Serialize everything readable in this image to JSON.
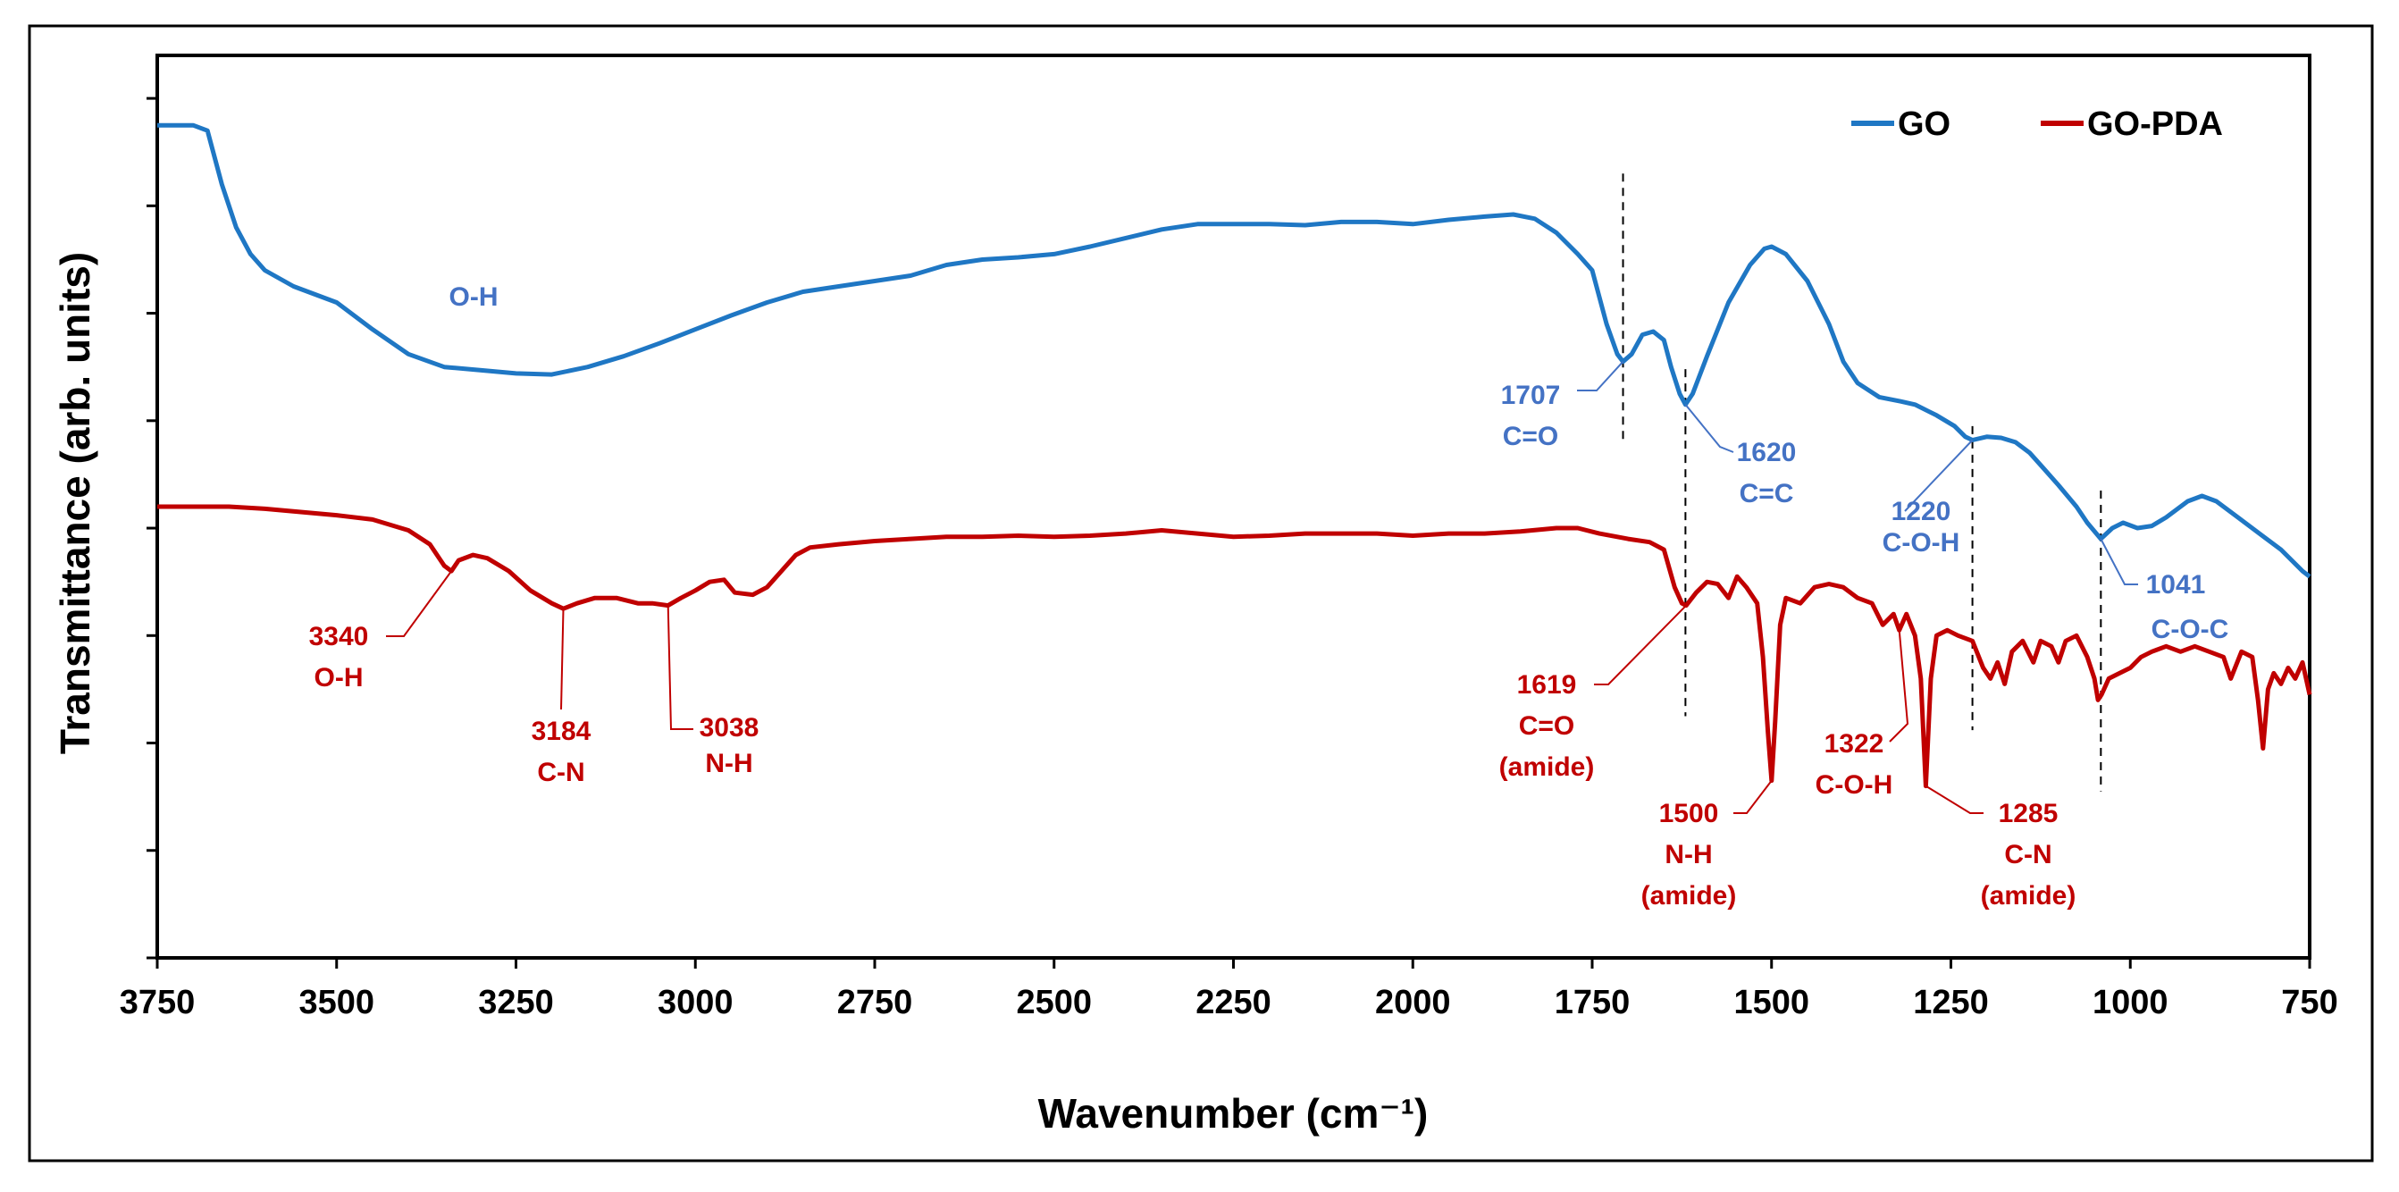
{
  "chart_data": {
    "type": "line",
    "title": "",
    "xlabel": "Wavenumber (cm⁻¹)",
    "ylabel": "Transmittance (arb. units)",
    "xlim": [
      3750,
      750
    ],
    "x_reversed": true,
    "ylim": [
      0,
      8.4
    ],
    "x_ticks": [
      3750,
      3500,
      3250,
      3000,
      2750,
      2500,
      2250,
      2000,
      1750,
      1500,
      1250,
      1000,
      750
    ],
    "y_ticks": [
      0,
      1,
      2,
      3,
      4,
      5,
      6,
      7,
      8
    ],
    "y_tick_labels_shown": false,
    "grid": false,
    "legend_position": "top-right",
    "colors": {
      "GO": "#1f77c4",
      "GO-PDA": "#c00000",
      "GO_label": "#4472c4",
      "GO-PDA_label": "#c00000"
    },
    "series": [
      {
        "name": "GO",
        "points": [
          [
            3750,
            7.75
          ],
          [
            3700,
            7.75
          ],
          [
            3680,
            7.7
          ],
          [
            3660,
            7.2
          ],
          [
            3640,
            6.8
          ],
          [
            3620,
            6.55
          ],
          [
            3600,
            6.4
          ],
          [
            3560,
            6.25
          ],
          [
            3500,
            6.1
          ],
          [
            3450,
            5.85
          ],
          [
            3400,
            5.62
          ],
          [
            3350,
            5.5
          ],
          [
            3300,
            5.47
          ],
          [
            3250,
            5.44
          ],
          [
            3200,
            5.43
          ],
          [
            3150,
            5.5
          ],
          [
            3100,
            5.6
          ],
          [
            3050,
            5.72
          ],
          [
            3000,
            5.85
          ],
          [
            2950,
            5.98
          ],
          [
            2900,
            6.1
          ],
          [
            2850,
            6.2
          ],
          [
            2800,
            6.25
          ],
          [
            2750,
            6.3
          ],
          [
            2700,
            6.35
          ],
          [
            2650,
            6.45
          ],
          [
            2600,
            6.5
          ],
          [
            2550,
            6.52
          ],
          [
            2500,
            6.55
          ],
          [
            2450,
            6.62
          ],
          [
            2400,
            6.7
          ],
          [
            2350,
            6.78
          ],
          [
            2300,
            6.83
          ],
          [
            2250,
            6.83
          ],
          [
            2200,
            6.83
          ],
          [
            2150,
            6.82
          ],
          [
            2100,
            6.85
          ],
          [
            2050,
            6.85
          ],
          [
            2000,
            6.83
          ],
          [
            1950,
            6.87
          ],
          [
            1900,
            6.9
          ],
          [
            1860,
            6.92
          ],
          [
            1830,
            6.88
          ],
          [
            1800,
            6.75
          ],
          [
            1770,
            6.55
          ],
          [
            1750,
            6.4
          ],
          [
            1730,
            5.9
          ],
          [
            1715,
            5.62
          ],
          [
            1707,
            5.55
          ],
          [
            1695,
            5.62
          ],
          [
            1680,
            5.8
          ],
          [
            1665,
            5.83
          ],
          [
            1650,
            5.75
          ],
          [
            1640,
            5.5
          ],
          [
            1628,
            5.25
          ],
          [
            1620,
            5.15
          ],
          [
            1610,
            5.25
          ],
          [
            1590,
            5.6
          ],
          [
            1560,
            6.1
          ],
          [
            1530,
            6.45
          ],
          [
            1510,
            6.6
          ],
          [
            1500,
            6.62
          ],
          [
            1480,
            6.55
          ],
          [
            1450,
            6.3
          ],
          [
            1420,
            5.9
          ],
          [
            1400,
            5.55
          ],
          [
            1380,
            5.35
          ],
          [
            1350,
            5.22
          ],
          [
            1320,
            5.18
          ],
          [
            1300,
            5.15
          ],
          [
            1270,
            5.05
          ],
          [
            1245,
            4.95
          ],
          [
            1230,
            4.85
          ],
          [
            1220,
            4.82
          ],
          [
            1200,
            4.85
          ],
          [
            1180,
            4.84
          ],
          [
            1160,
            4.8
          ],
          [
            1140,
            4.7
          ],
          [
            1120,
            4.55
          ],
          [
            1100,
            4.4
          ],
          [
            1075,
            4.2
          ],
          [
            1060,
            4.05
          ],
          [
            1041,
            3.9
          ],
          [
            1025,
            4.0
          ],
          [
            1010,
            4.05
          ],
          [
            990,
            4.0
          ],
          [
            970,
            4.02
          ],
          [
            950,
            4.1
          ],
          [
            920,
            4.25
          ],
          [
            900,
            4.3
          ],
          [
            880,
            4.25
          ],
          [
            850,
            4.1
          ],
          [
            820,
            3.95
          ],
          [
            790,
            3.8
          ],
          [
            760,
            3.6
          ],
          [
            750,
            3.55
          ]
        ]
      },
      {
        "name": "GO-PDA",
        "points": [
          [
            3750,
            4.2
          ],
          [
            3700,
            4.2
          ],
          [
            3650,
            4.2
          ],
          [
            3600,
            4.18
          ],
          [
            3550,
            4.15
          ],
          [
            3500,
            4.12
          ],
          [
            3450,
            4.08
          ],
          [
            3400,
            3.98
          ],
          [
            3370,
            3.85
          ],
          [
            3350,
            3.65
          ],
          [
            3340,
            3.6
          ],
          [
            3330,
            3.7
          ],
          [
            3310,
            3.75
          ],
          [
            3290,
            3.72
          ],
          [
            3260,
            3.6
          ],
          [
            3230,
            3.42
          ],
          [
            3200,
            3.3
          ],
          [
            3184,
            3.25
          ],
          [
            3165,
            3.3
          ],
          [
            3140,
            3.35
          ],
          [
            3110,
            3.35
          ],
          [
            3080,
            3.3
          ],
          [
            3060,
            3.3
          ],
          [
            3038,
            3.28
          ],
          [
            3020,
            3.35
          ],
          [
            3000,
            3.42
          ],
          [
            2980,
            3.5
          ],
          [
            2960,
            3.52
          ],
          [
            2945,
            3.4
          ],
          [
            2920,
            3.38
          ],
          [
            2900,
            3.45
          ],
          [
            2880,
            3.6
          ],
          [
            2860,
            3.75
          ],
          [
            2840,
            3.82
          ],
          [
            2800,
            3.85
          ],
          [
            2750,
            3.88
          ],
          [
            2700,
            3.9
          ],
          [
            2650,
            3.92
          ],
          [
            2600,
            3.92
          ],
          [
            2550,
            3.93
          ],
          [
            2500,
            3.92
          ],
          [
            2450,
            3.93
          ],
          [
            2400,
            3.95
          ],
          [
            2350,
            3.98
          ],
          [
            2300,
            3.95
          ],
          [
            2250,
            3.92
          ],
          [
            2200,
            3.93
          ],
          [
            2150,
            3.95
          ],
          [
            2100,
            3.95
          ],
          [
            2050,
            3.95
          ],
          [
            2000,
            3.93
          ],
          [
            1950,
            3.95
          ],
          [
            1900,
            3.95
          ],
          [
            1850,
            3.97
          ],
          [
            1800,
            4.0
          ],
          [
            1770,
            4.0
          ],
          [
            1740,
            3.95
          ],
          [
            1700,
            3.9
          ],
          [
            1670,
            3.87
          ],
          [
            1650,
            3.8
          ],
          [
            1635,
            3.45
          ],
          [
            1625,
            3.3
          ],
          [
            1619,
            3.28
          ],
          [
            1605,
            3.4
          ],
          [
            1590,
            3.5
          ],
          [
            1575,
            3.48
          ],
          [
            1560,
            3.35
          ],
          [
            1548,
            3.55
          ],
          [
            1535,
            3.45
          ],
          [
            1520,
            3.3
          ],
          [
            1512,
            2.8
          ],
          [
            1505,
            2.1
          ],
          [
            1500,
            1.65
          ],
          [
            1495,
            2.2
          ],
          [
            1488,
            3.1
          ],
          [
            1480,
            3.35
          ],
          [
            1460,
            3.3
          ],
          [
            1440,
            3.45
          ],
          [
            1420,
            3.48
          ],
          [
            1400,
            3.45
          ],
          [
            1380,
            3.35
          ],
          [
            1360,
            3.3
          ],
          [
            1345,
            3.1
          ],
          [
            1330,
            3.2
          ],
          [
            1322,
            3.05
          ],
          [
            1312,
            3.2
          ],
          [
            1300,
            3.0
          ],
          [
            1292,
            2.6
          ],
          [
            1285,
            1.6
          ],
          [
            1278,
            2.6
          ],
          [
            1270,
            3.0
          ],
          [
            1255,
            3.05
          ],
          [
            1240,
            3.0
          ],
          [
            1220,
            2.95
          ],
          [
            1205,
            2.7
          ],
          [
            1195,
            2.6
          ],
          [
            1185,
            2.75
          ],
          [
            1175,
            2.55
          ],
          [
            1165,
            2.85
          ],
          [
            1150,
            2.95
          ],
          [
            1135,
            2.75
          ],
          [
            1125,
            2.95
          ],
          [
            1110,
            2.9
          ],
          [
            1100,
            2.75
          ],
          [
            1090,
            2.95
          ],
          [
            1075,
            3.0
          ],
          [
            1060,
            2.8
          ],
          [
            1050,
            2.6
          ],
          [
            1045,
            2.4
          ],
          [
            1040,
            2.45
          ],
          [
            1030,
            2.6
          ],
          [
            1015,
            2.65
          ],
          [
            1000,
            2.7
          ],
          [
            985,
            2.8
          ],
          [
            970,
            2.85
          ],
          [
            950,
            2.9
          ],
          [
            930,
            2.85
          ],
          [
            910,
            2.9
          ],
          [
            890,
            2.85
          ],
          [
            870,
            2.8
          ],
          [
            860,
            2.6
          ],
          [
            845,
            2.85
          ],
          [
            830,
            2.8
          ],
          [
            822,
            2.4
          ],
          [
            815,
            1.95
          ],
          [
            808,
            2.5
          ],
          [
            800,
            2.65
          ],
          [
            790,
            2.55
          ],
          [
            780,
            2.7
          ],
          [
            770,
            2.6
          ],
          [
            760,
            2.75
          ],
          [
            750,
            2.45
          ]
        ]
      }
    ],
    "annotations_go": [
      {
        "label": "O-H"
      },
      {
        "value": "1707",
        "label": "C=O"
      },
      {
        "value": "1620",
        "label": "C=C"
      },
      {
        "value": "1220",
        "label": "C-O-H"
      },
      {
        "value": "1041",
        "label": "C-O-C"
      }
    ],
    "annotations_gopda": [
      {
        "value": "3340",
        "label": "O-H"
      },
      {
        "value": "3184",
        "label": "C-N"
      },
      {
        "value": "3038",
        "label": "N-H"
      },
      {
        "value": "1619",
        "label": "C=O",
        "note": "(amide)"
      },
      {
        "value": "1500",
        "label": "N-H",
        "note": "(amide)"
      },
      {
        "value": "1322",
        "label": "C-O-H"
      },
      {
        "value": "1285",
        "label": "C-N",
        "note": "(amide)"
      }
    ],
    "reference_lines": [
      1707,
      1620,
      1220,
      1041
    ]
  }
}
